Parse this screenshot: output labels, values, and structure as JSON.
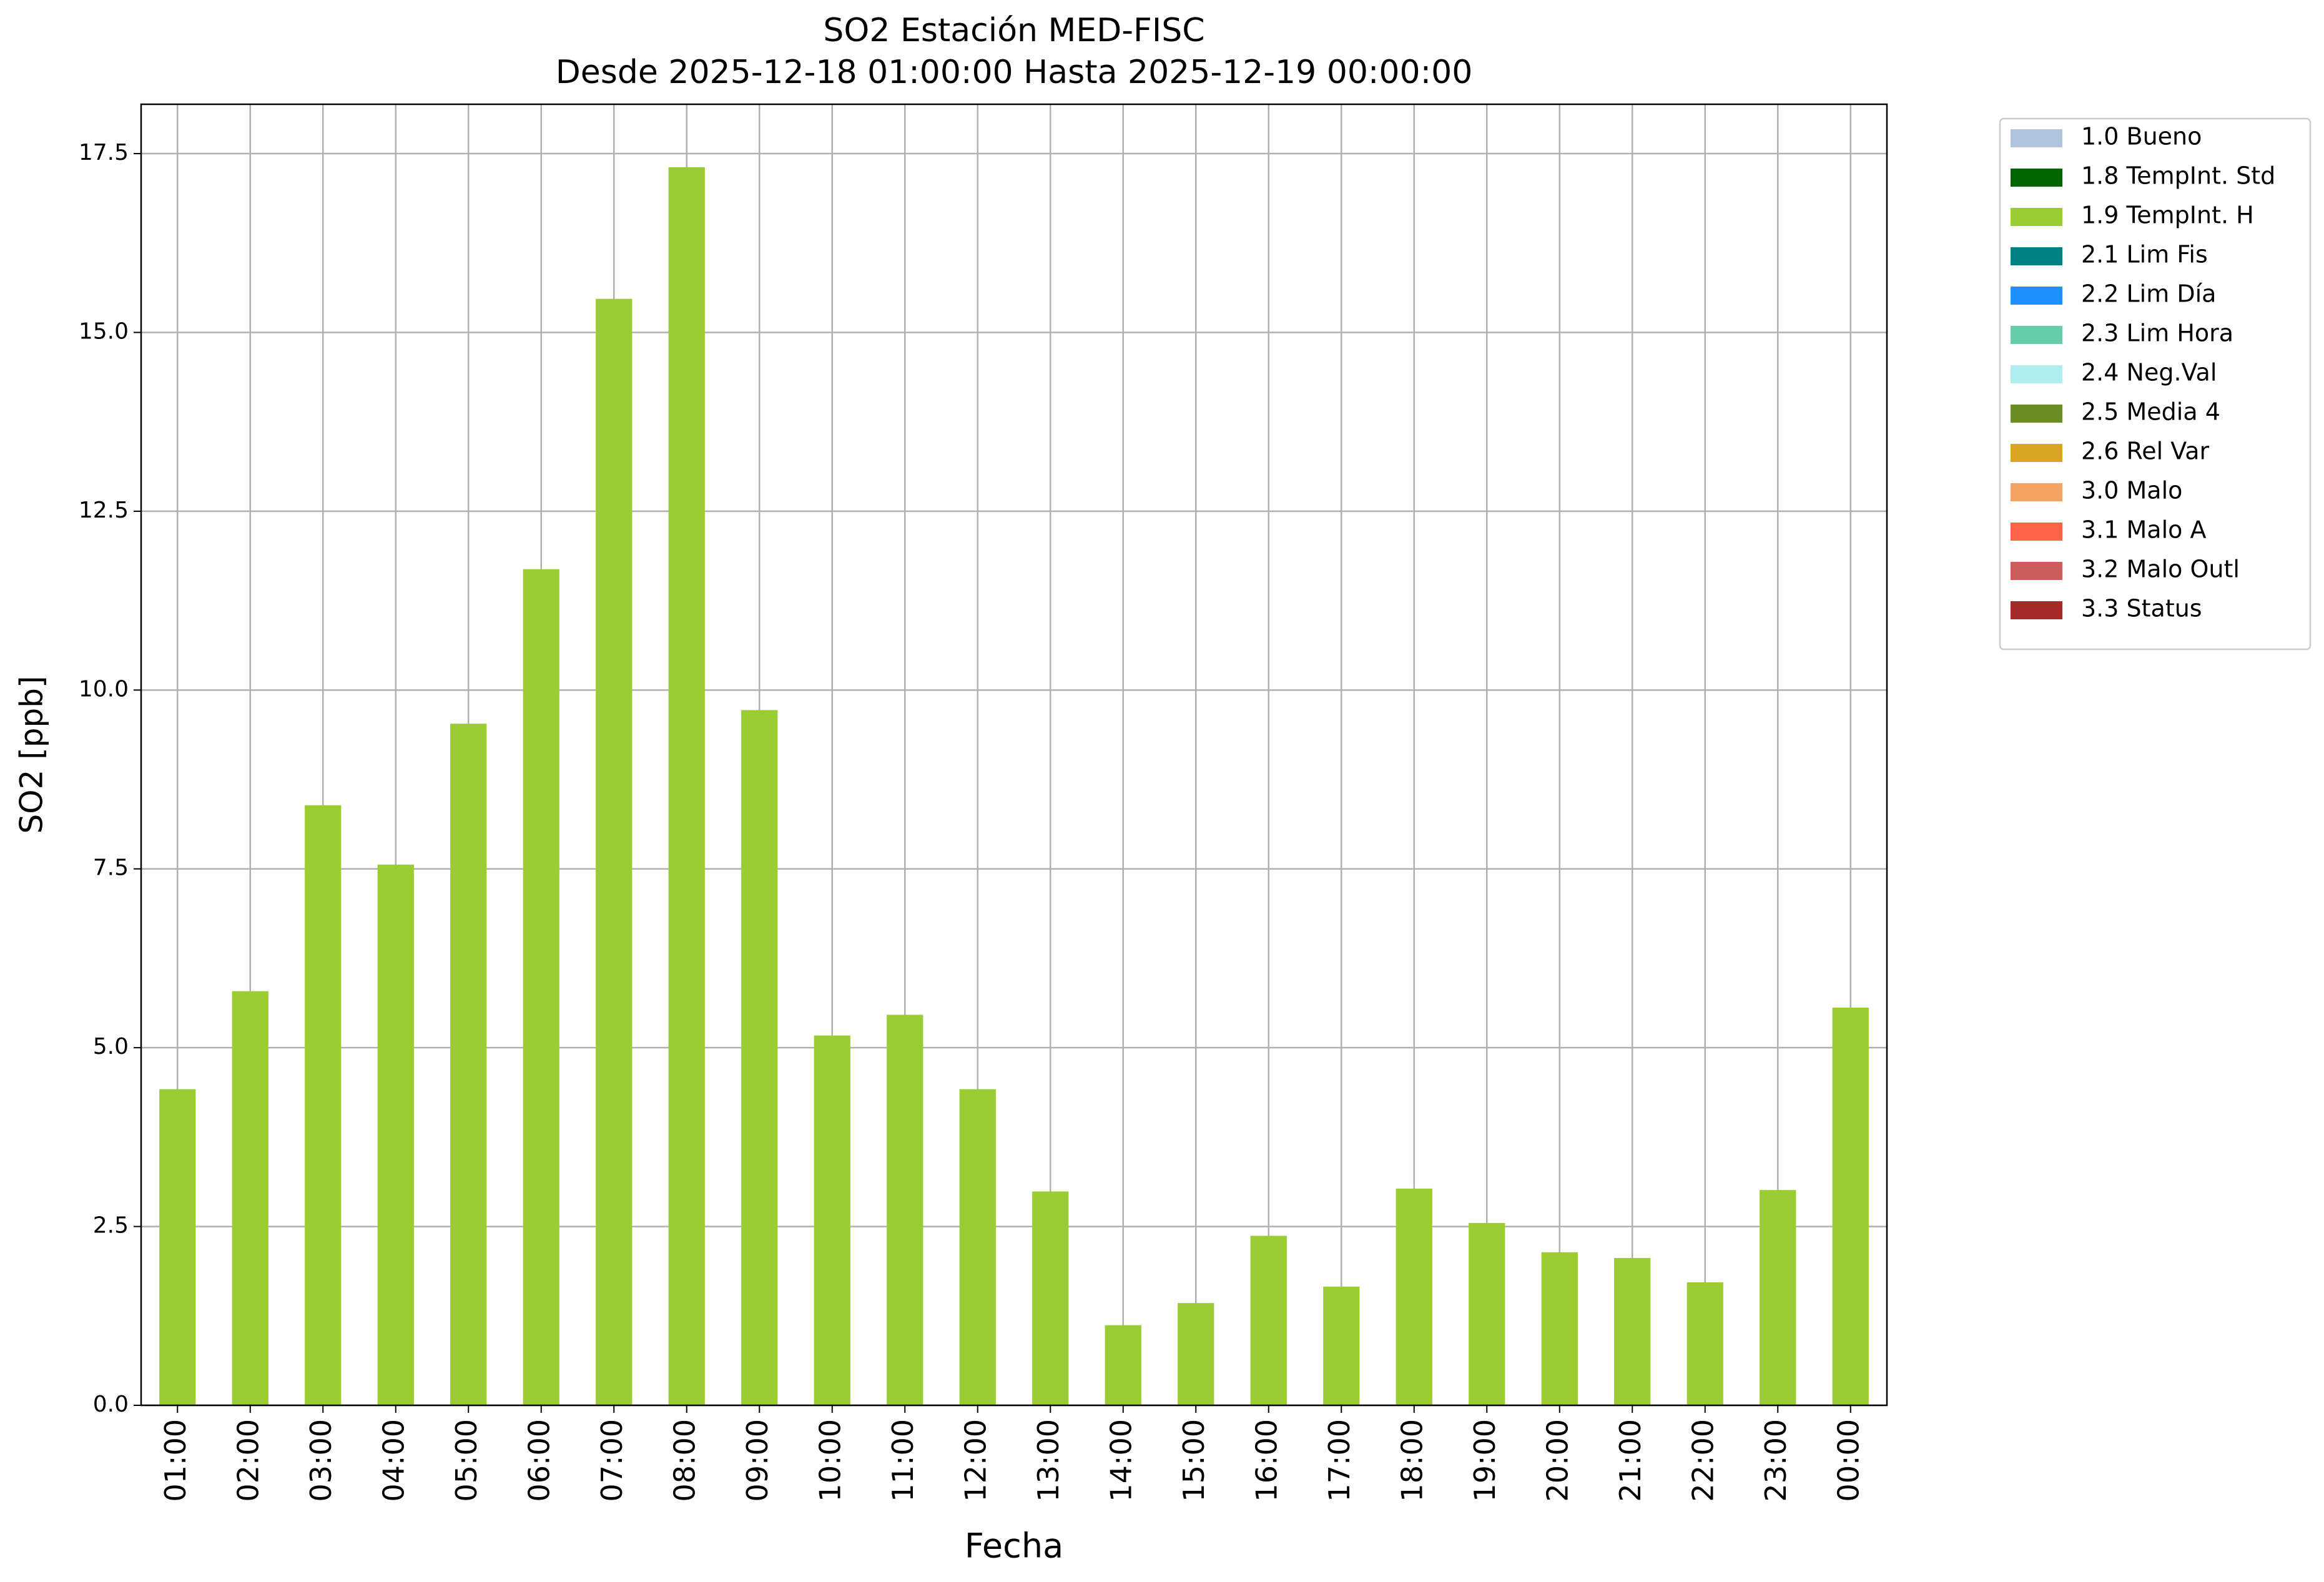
{
  "chart_data": {
    "type": "stacked-bar",
    "title": "SO2 Estación MED-FISC",
    "subtitle": "Desde 2025-12-18 01:00:00 Hasta 2025-12-19 00:00:00",
    "x_label": "Fecha",
    "y_label": "SO2 [ppb]",
    "categories": [
      "01:00",
      "02:00",
      "03:00",
      "04:00",
      "05:00",
      "06:00",
      "07:00",
      "08:00",
      "09:00",
      "10:00",
      "11:00",
      "12:00",
      "13:00",
      "14:00",
      "15:00",
      "16:00",
      "17:00",
      "18:00",
      "19:00",
      "20:00",
      "21:00",
      "22:00",
      "23:00",
      "00:00"
    ],
    "series": [
      {
        "name": "1.0 Bueno",
        "color": "#b0c4de",
        "values": [
          0,
          0,
          0,
          0,
          0,
          0,
          0,
          0,
          0,
          0,
          0,
          0,
          0,
          0,
          0,
          0,
          0,
          0,
          0,
          0,
          0,
          0,
          0,
          0
        ]
      },
      {
        "name": "1.8 TempInt. Std",
        "color": "#006400",
        "values": [
          0,
          0,
          0,
          0,
          0,
          0,
          0,
          0,
          0,
          0,
          0,
          0,
          0,
          0,
          0,
          0,
          0,
          0,
          0,
          0,
          0,
          0,
          0,
          0
        ]
      },
      {
        "name": "1.9 TempInt. H",
        "color": "#9acd32",
        "values": [
          4.42,
          5.79,
          8.39,
          7.56,
          9.53,
          11.69,
          15.47,
          17.31,
          9.72,
          5.17,
          5.46,
          4.42,
          2.99,
          1.12,
          1.43,
          2.37,
          1.66,
          3.03,
          2.55,
          2.14,
          2.06,
          1.72,
          3.01,
          5.56
        ]
      },
      {
        "name": "2.1 Lim Fis",
        "color": "#008080",
        "values": [
          0,
          0,
          0,
          0,
          0,
          0,
          0,
          0,
          0,
          0,
          0,
          0,
          0,
          0,
          0,
          0,
          0,
          0,
          0,
          0,
          0,
          0,
          0,
          0
        ]
      },
      {
        "name": "2.2 Lim Día",
        "color": "#1e90ff",
        "values": [
          0,
          0,
          0,
          0,
          0,
          0,
          0,
          0,
          0,
          0,
          0,
          0,
          0,
          0,
          0,
          0,
          0,
          0,
          0,
          0,
          0,
          0,
          0,
          0
        ]
      },
      {
        "name": "2.3 Lim Hora",
        "color": "#66cdaa",
        "values": [
          0,
          0,
          0,
          0,
          0,
          0,
          0,
          0,
          0,
          0,
          0,
          0,
          0,
          0,
          0,
          0,
          0,
          0,
          0,
          0,
          0,
          0,
          0,
          0
        ]
      },
      {
        "name": "2.4 Neg.Val",
        "color": "#afeeee",
        "values": [
          0,
          0,
          0,
          0,
          0,
          0,
          0,
          0,
          0,
          0,
          0,
          0,
          0,
          0,
          0,
          0,
          0,
          0,
          0,
          0,
          0,
          0,
          0,
          0
        ]
      },
      {
        "name": "2.5 Media 4",
        "color": "#6b8e23",
        "values": [
          0,
          0,
          0,
          0,
          0,
          0,
          0,
          0,
          0,
          0,
          0,
          0,
          0,
          0,
          0,
          0,
          0,
          0,
          0,
          0,
          0,
          0,
          0,
          0
        ]
      },
      {
        "name": "2.6 Rel Var",
        "color": "#daa520",
        "values": [
          0,
          0,
          0,
          0,
          0,
          0,
          0,
          0,
          0,
          0,
          0,
          0,
          0,
          0,
          0,
          0,
          0,
          0,
          0,
          0,
          0,
          0,
          0,
          0
        ]
      },
      {
        "name": "3.0 Malo",
        "color": "#f4a460",
        "values": [
          0,
          0,
          0,
          0,
          0,
          0,
          0,
          0,
          0,
          0,
          0,
          0,
          0,
          0,
          0,
          0,
          0,
          0,
          0,
          0,
          0,
          0,
          0,
          0
        ]
      },
      {
        "name": "3.1 Malo A",
        "color": "#ff6347",
        "values": [
          0,
          0,
          0,
          0,
          0,
          0,
          0,
          0,
          0,
          0,
          0,
          0,
          0,
          0,
          0,
          0,
          0,
          0,
          0,
          0,
          0,
          0,
          0,
          0
        ]
      },
      {
        "name": "3.2 Malo Outl",
        "color": "#cd5c5c",
        "values": [
          0,
          0,
          0,
          0,
          0,
          0,
          0,
          0,
          0,
          0,
          0,
          0,
          0,
          0,
          0,
          0,
          0,
          0,
          0,
          0,
          0,
          0,
          0,
          0
        ]
      },
      {
        "name": "3.3 Status",
        "color": "#a52a2a",
        "values": [
          0,
          0,
          0,
          0,
          0,
          0,
          0,
          0,
          0,
          0,
          0,
          0,
          0,
          0,
          0,
          0,
          0,
          0,
          0,
          0,
          0,
          0,
          0,
          0
        ]
      }
    ],
    "ylim": [
      0,
      18.19
    ],
    "yticks": [
      {
        "value": 0,
        "label": "0.0"
      },
      2.5,
      {
        "value": 5,
        "label": "5.0"
      },
      7.5,
      {
        "value": 10,
        "label": "10.0"
      },
      12.5,
      {
        "value": 15,
        "label": "15.0"
      },
      17.5
    ],
    "grid": true,
    "legend": "outside-upper-right"
  }
}
